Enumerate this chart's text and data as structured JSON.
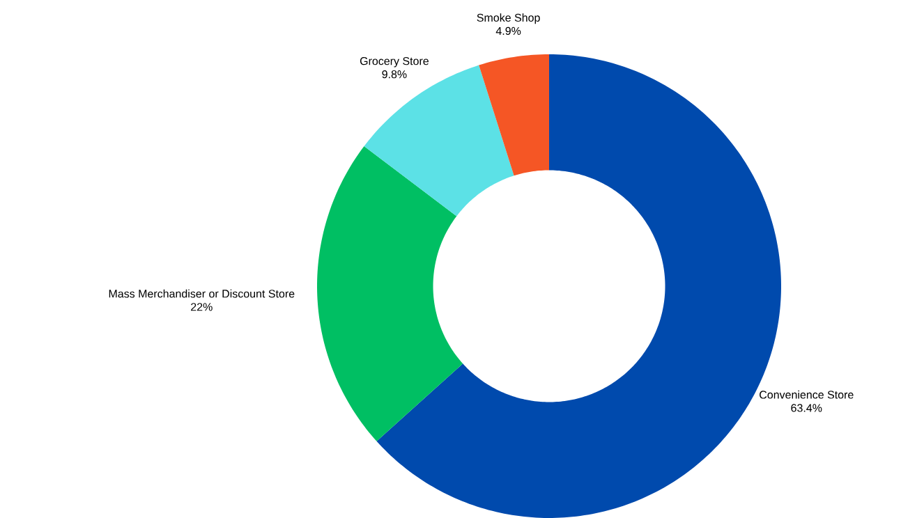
{
  "chart_data": {
    "type": "donut",
    "categories": [
      "Convenience Store",
      "Mass Merchandiser or Discount Store",
      "Grocery Store",
      "Smoke Shop"
    ],
    "values": [
      63.4,
      22,
      9.8,
      4.9
    ],
    "value_labels": [
      "63.4%",
      "22%",
      "9.8%",
      "4.9%"
    ],
    "colors": [
      "#004aad",
      "#00bf63",
      "#5ce1e6",
      "#f55625"
    ],
    "legend": false
  }
}
